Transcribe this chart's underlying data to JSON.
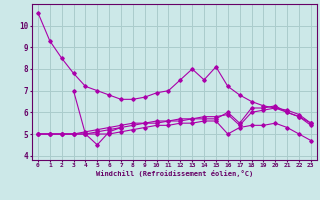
{
  "title": "",
  "xlabel": "Windchill (Refroidissement éolien,°C)",
  "background_color": "#cce8e8",
  "grid_color": "#aacccc",
  "line_color": "#aa00aa",
  "xlim": [
    -0.5,
    23.5
  ],
  "ylim": [
    3.8,
    11.0
  ],
  "yticks": [
    4,
    5,
    6,
    7,
    8,
    9,
    10
  ],
  "xticks": [
    0,
    1,
    2,
    3,
    4,
    5,
    6,
    7,
    8,
    9,
    10,
    11,
    12,
    13,
    14,
    15,
    16,
    17,
    18,
    19,
    20,
    21,
    22,
    23
  ],
  "series": [
    {
      "x": [
        0,
        1,
        2,
        3,
        4,
        5,
        6,
        7,
        8,
        9,
        10,
        11,
        12,
        13,
        14,
        15,
        16,
        17,
        18,
        19,
        20,
        21,
        22,
        23
      ],
      "y": [
        10.6,
        9.3,
        8.5,
        7.8,
        7.2,
        7.0,
        6.8,
        6.6,
        6.6,
        6.7,
        6.9,
        7.0,
        7.5,
        8.0,
        7.5,
        8.1,
        7.2,
        6.8,
        6.5,
        6.3,
        6.2,
        6.1,
        5.9,
        5.5
      ]
    },
    {
      "x": [
        3,
        4,
        5,
        6,
        7
      ],
      "y": [
        7.0,
        5.0,
        4.5,
        5.1,
        5.3
      ]
    },
    {
      "x": [
        0,
        1,
        2,
        3,
        4,
        5,
        6,
        7,
        8,
        9,
        10,
        11,
        12,
        13,
        14,
        15,
        16,
        17,
        18,
        19,
        20,
        21,
        22,
        23
      ],
      "y": [
        5.0,
        5.0,
        5.0,
        5.0,
        5.0,
        5.0,
        5.0,
        5.1,
        5.2,
        5.3,
        5.4,
        5.4,
        5.5,
        5.5,
        5.6,
        5.6,
        5.0,
        5.3,
        5.4,
        5.4,
        5.5,
        5.3,
        5.0,
        4.7
      ]
    },
    {
      "x": [
        0,
        1,
        2,
        3,
        4,
        5,
        6,
        7,
        8,
        9,
        10,
        11,
        12,
        13,
        14,
        15,
        16,
        17,
        18,
        19,
        20,
        21,
        22,
        23
      ],
      "y": [
        5.0,
        5.0,
        5.0,
        5.0,
        5.1,
        5.2,
        5.3,
        5.4,
        5.5,
        5.5,
        5.6,
        5.6,
        5.7,
        5.7,
        5.8,
        5.8,
        5.9,
        5.4,
        6.0,
        6.1,
        6.2,
        6.0,
        5.8,
        5.5
      ]
    },
    {
      "x": [
        0,
        1,
        2,
        3,
        4,
        5,
        6,
        7,
        8,
        9,
        10,
        11,
        12,
        13,
        14,
        15,
        16,
        17,
        18,
        19,
        20,
        21,
        22,
        23
      ],
      "y": [
        5.0,
        5.0,
        5.0,
        5.0,
        5.0,
        5.1,
        5.2,
        5.3,
        5.4,
        5.5,
        5.5,
        5.6,
        5.6,
        5.7,
        5.7,
        5.7,
        6.0,
        5.5,
        6.2,
        6.2,
        6.3,
        6.0,
        5.8,
        5.4
      ]
    }
  ]
}
